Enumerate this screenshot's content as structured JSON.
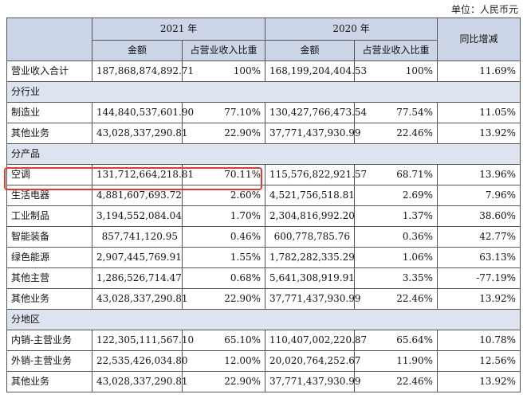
{
  "unit": "单位：人民币元",
  "header": {
    "year_2021": "2021 年",
    "year_2020": "2020 年",
    "yoy": "同比增减",
    "amount": "金额",
    "share": "占营业收入比重"
  },
  "total": {
    "label": "营业收入合计",
    "a2021": "187,868,874,892.71",
    "p2021": "100%",
    "a2020": "168,199,204,404.53",
    "p2020": "100%",
    "yoy": "11.69%"
  },
  "sections": {
    "industry": {
      "title": "分行业",
      "rows": [
        {
          "label": "制造业",
          "a2021": "144,840,537,601.90",
          "p2021": "77.10%",
          "a2020": "130,427,766,473.54",
          "p2020": "77.54%",
          "yoy": "11.05%"
        },
        {
          "label": "其他业务",
          "a2021": "43,028,337,290.81",
          "p2021": "22.90%",
          "a2020": "37,771,437,930.99",
          "p2020": "22.46%",
          "yoy": "13.92%"
        }
      ]
    },
    "product": {
      "title": "分产品",
      "rows": [
        {
          "label": "空调",
          "a2021": "131,712,664,218.81",
          "p2021": "70.11%",
          "a2020": "115,576,822,921.57",
          "p2020": "68.71%",
          "yoy": "13.96%"
        },
        {
          "label": "生活电器",
          "a2021": "4,881,607,693.72",
          "p2021": "2.60%",
          "a2020": "4,521,756,518.81",
          "p2020": "2.69%",
          "yoy": "7.96%"
        },
        {
          "label": "工业制品",
          "a2021": "3,194,552,084.04",
          "p2021": "1.70%",
          "a2020": "2,304,816,992.20",
          "p2020": "1.37%",
          "yoy": "38.60%"
        },
        {
          "label": "智能装备",
          "a2021": "857,741,120.95",
          "p2021": "0.46%",
          "a2020": "600,778,785.76",
          "p2020": "0.36%",
          "yoy": "42.77%"
        },
        {
          "label": "绿色能源",
          "a2021": "2,907,445,769.91",
          "p2021": "1.55%",
          "a2020": "1,782,282,335.29",
          "p2020": "1.06%",
          "yoy": "63.13%"
        },
        {
          "label": "其他主营",
          "a2021": "1,286,526,714.47",
          "p2021": "0.68%",
          "a2020": "5,641,308,919.91",
          "p2020": "3.35%",
          "yoy": "-77.19%"
        },
        {
          "label": "其他业务",
          "a2021": "43,028,337,290.81",
          "p2021": "22.90%",
          "a2020": "37,771,437,930.99",
          "p2020": "22.46%",
          "yoy": "13.92%"
        }
      ]
    },
    "region": {
      "title": "分地区",
      "rows": [
        {
          "label": "内销-主营业务",
          "a2021": "122,305,111,567.10",
          "p2021": "65.10%",
          "a2020": "110,407,002,220.87",
          "p2020": "65.64%",
          "yoy": "10.78%"
        },
        {
          "label": "外销-主营业务",
          "a2021": "22,535,426,034.80",
          "p2021": "12.00%",
          "a2020": "20,020,764,252.67",
          "p2020": "11.90%",
          "yoy": "12.56%"
        },
        {
          "label": "其他业务",
          "a2021": "43,028,337,290.81",
          "p2021": "22.90%",
          "a2020": "37,771,437,930.99",
          "p2020": "22.46%",
          "yoy": "13.92%"
        }
      ]
    }
  },
  "colors": {
    "header_bg": "#ccd6e8",
    "section_bg": "#dde4f0",
    "highlight": "#e03b2e"
  }
}
